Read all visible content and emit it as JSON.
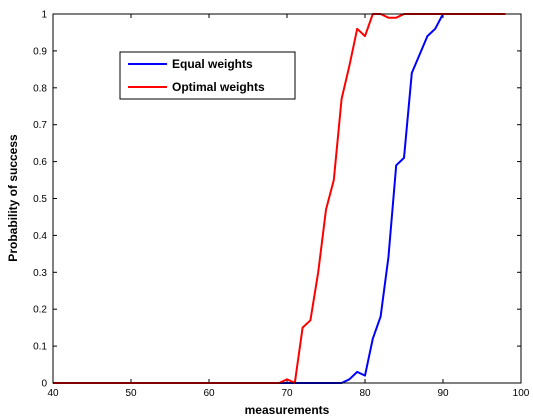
{
  "chart_data": {
    "type": "line",
    "title": "",
    "xlabel": "measurements",
    "ylabel": "Probability of success",
    "xlim": [
      40,
      100
    ],
    "ylim": [
      0,
      1
    ],
    "xticks": [
      40,
      50,
      60,
      70,
      80,
      90,
      100
    ],
    "yticks": [
      0,
      0.1,
      0.2,
      0.3,
      0.4,
      0.5,
      0.6,
      0.7,
      0.8,
      0.9,
      1
    ],
    "grid": false,
    "legend_position": "top-left",
    "series": [
      {
        "name": "Equal weights",
        "color": "#0000ff",
        "x": [
          40,
          70,
          71,
          72,
          73,
          74,
          75,
          76,
          77,
          78,
          79,
          80,
          81,
          82,
          83,
          84,
          85,
          86,
          87,
          88,
          89,
          90,
          91,
          92,
          93,
          94,
          95,
          96,
          97,
          98
        ],
        "y": [
          0,
          0,
          0,
          0,
          0,
          0,
          0,
          0,
          0,
          0.01,
          0.03,
          0.02,
          0.12,
          0.18,
          0.34,
          0.59,
          0.61,
          0.84,
          0.89,
          0.94,
          0.96,
          1,
          1,
          1,
          1,
          1,
          1,
          1,
          1,
          1
        ]
      },
      {
        "name": "Optimal weights",
        "color": "#ff0000",
        "x": [
          40,
          69,
          70,
          71,
          72,
          73,
          74,
          75,
          76,
          77,
          78,
          79,
          80,
          81,
          82,
          83,
          84,
          85,
          86,
          87,
          88,
          89,
          90,
          91,
          92,
          93,
          94,
          95,
          96,
          97,
          98
        ],
        "y": [
          0,
          0,
          0.01,
          0,
          0.15,
          0.17,
          0.3,
          0.47,
          0.55,
          0.77,
          0.86,
          0.96,
          0.94,
          1,
          1,
          0.99,
          0.99,
          1,
          1,
          1,
          1,
          1,
          1,
          1,
          1,
          1,
          1,
          1,
          1,
          1,
          1
        ]
      }
    ]
  }
}
